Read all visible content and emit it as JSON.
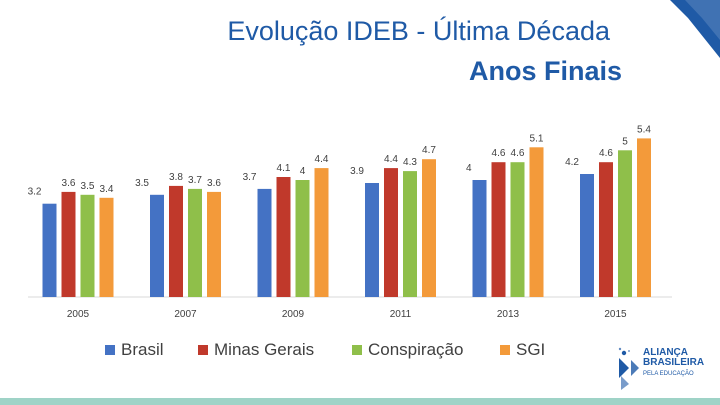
{
  "header": {
    "title": "Evolução IDEB - Última Década",
    "subtitle": "Anos Finais"
  },
  "logo": {
    "line1": "ALIANÇA",
    "line2": "BRASILEIRA",
    "line3": "PELA EDUCAÇÃO",
    "icon": "ab-person-logo-icon"
  },
  "chart_data": {
    "type": "bar",
    "categories": [
      "2005",
      "2007",
      "2009",
      "2011",
      "2013",
      "2015"
    ],
    "series": [
      {
        "name": "Brasil",
        "color": "#4472c4",
        "values": [
          3.2,
          3.5,
          3.7,
          3.9,
          4,
          4.2
        ]
      },
      {
        "name": "Minas Gerais",
        "color": "#c0392b",
        "values": [
          3.6,
          3.8,
          4.1,
          4.4,
          4.6,
          4.6
        ]
      },
      {
        "name": "Conspiração",
        "color": "#8fbf4a",
        "values": [
          3.5,
          3.7,
          4,
          4.3,
          4.6,
          5
        ]
      },
      {
        "name": "SGI",
        "color": "#f39a3a",
        "values": [
          3.4,
          3.6,
          4.4,
          4.7,
          5.1,
          5.4
        ]
      }
    ],
    "value_labels": [
      [
        "3.2",
        "3.5",
        "3.7",
        "3.9",
        "4",
        "4.2"
      ],
      [
        "3.6",
        "3.8",
        "4.1",
        "4.4",
        "4.6",
        "4.6"
      ],
      [
        "3.5",
        "3.7",
        "4",
        "4.3",
        "4.6",
        "5"
      ],
      [
        "3.4",
        "3.6",
        "4.4",
        "4.7",
        "5.1",
        "5.4"
      ]
    ],
    "ylim": [
      0,
      6
    ],
    "grid": false,
    "legend": "bottom"
  }
}
